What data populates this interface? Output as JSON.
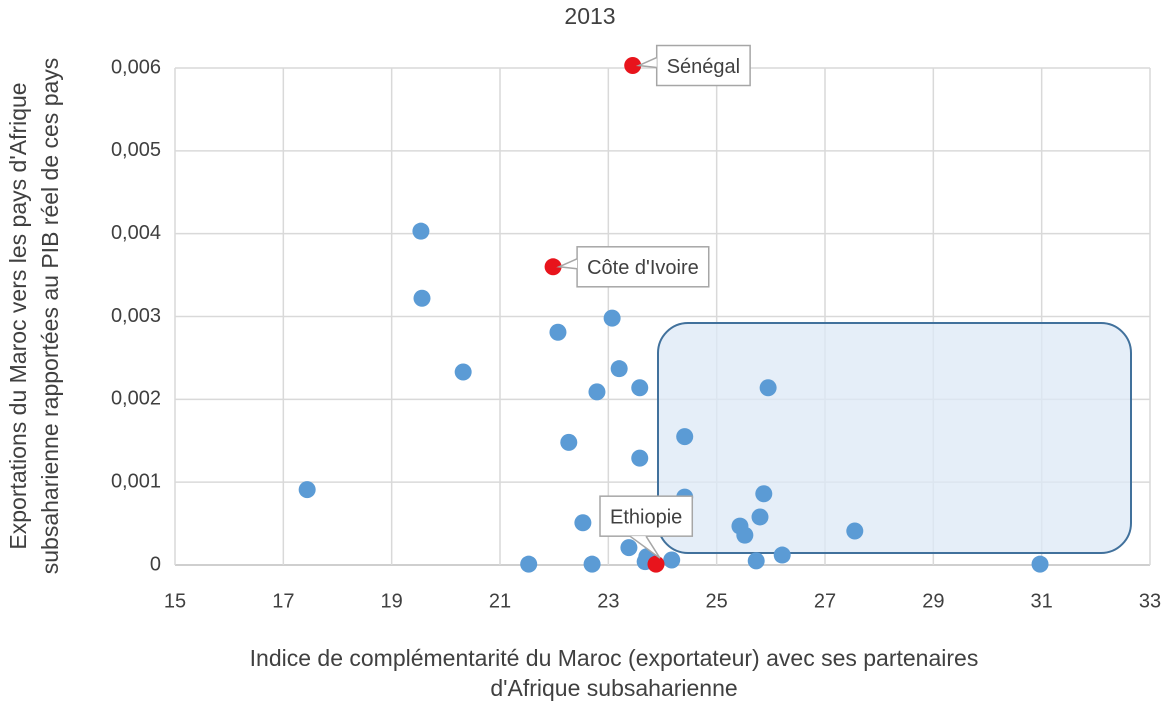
{
  "chart_data": {
    "type": "scatter",
    "title": "2013",
    "xlabel": [
      "Indice de complémentarité du Maroc (exportateur) avec ses partenaires",
      "d'Afrique subsaharienne"
    ],
    "ylabel": [
      "Exportations du Maroc vers les pays d'Afrique",
      "subsaharienne  rapportées au PIB réel de ces pays"
    ],
    "xlim": [
      15,
      33
    ],
    "xticks": [
      15,
      17,
      19,
      21,
      23,
      25,
      27,
      29,
      31,
      33
    ],
    "ylim": [
      0,
      0.006
    ],
    "yticks": [
      0,
      {
        "value": 0.001,
        "label": "0,001"
      },
      {
        "value": 0.002,
        "label": "0,002"
      },
      {
        "value": 0.003,
        "label": "0,003"
      },
      {
        "value": 0.004,
        "label": "0,004"
      },
      {
        "value": 0.005,
        "label": "0,005"
      },
      {
        "value": 0.006,
        "label": "0,006"
      }
    ],
    "grid": true,
    "series": [
      {
        "color": "#5b9bd5",
        "x": [
          17.44,
          19.54,
          19.56,
          20.32,
          21.53,
          22.07,
          22.27,
          22.53,
          22.7,
          22.79,
          23.07,
          23.2,
          23.38,
          23.58,
          23.58,
          23.68,
          23.71,
          24.17,
          24.41,
          24.41,
          25.43,
          25.52,
          25.73,
          25.8,
          25.87,
          25.95,
          26.21,
          27.55,
          30.97
        ],
        "values": [
          0.00091,
          0.00403,
          0.00322,
          0.00233,
          1e-05,
          0.00281,
          0.00148,
          0.00051,
          1e-05,
          0.00209,
          0.00298,
          0.00237,
          0.00021,
          0.00214,
          0.00129,
          4e-05,
          0.0001,
          6e-05,
          0.00155,
          0.00082,
          0.00047,
          0.00036,
          5e-05,
          0.00058,
          0.00086,
          0.00214,
          0.00012,
          0.00041,
          1e-05
        ]
      },
      {
        "color": "#e8141c",
        "x": [
          23.45,
          21.98,
          23.88
        ],
        "values": [
          0.00603,
          0.0036,
          1e-05
        ],
        "point_labels": [
          "Sénégal",
          "Côte d'Ivoire",
          "Ethiopie"
        ]
      }
    ]
  }
}
